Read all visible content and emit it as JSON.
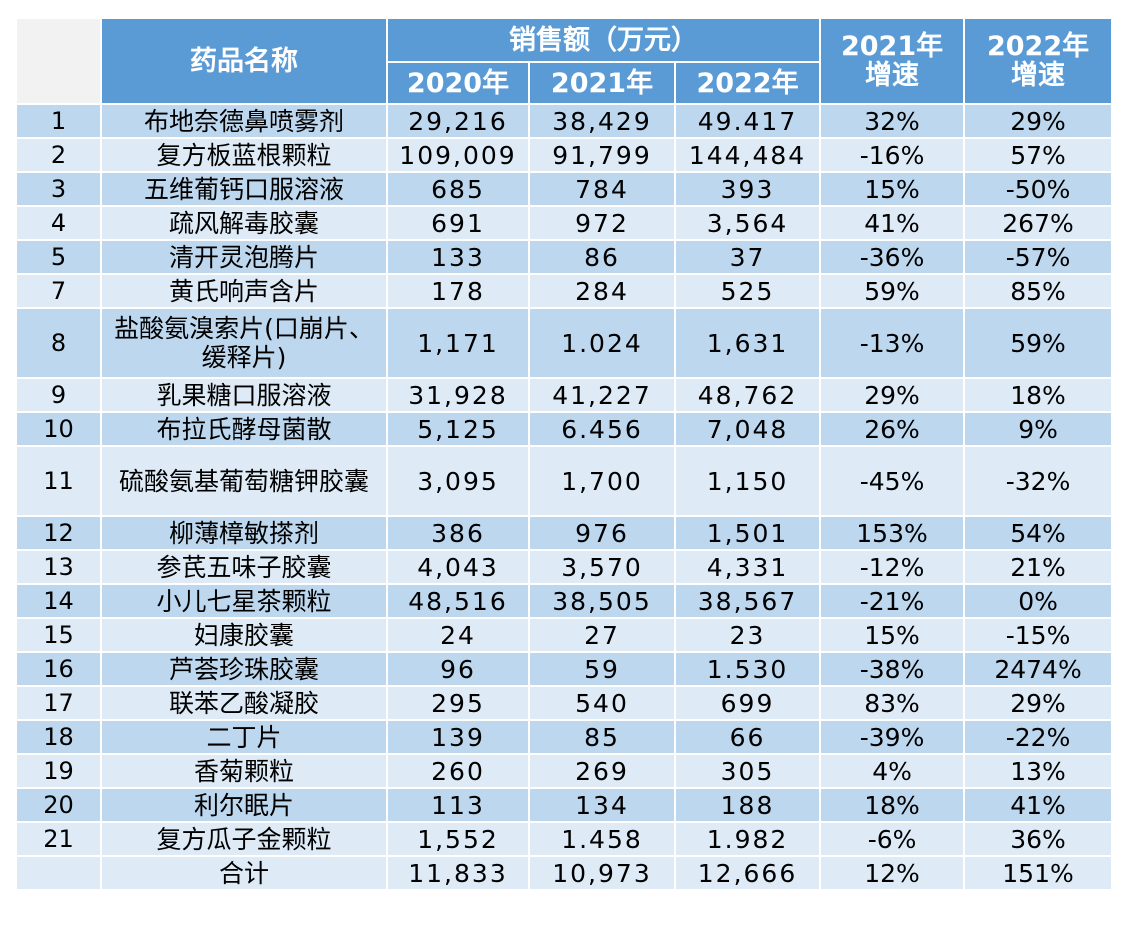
{
  "header": {
    "name_label": "药品名称",
    "sales_label": "销售额（万元）",
    "years": [
      "2020年",
      "2021年",
      "2022年"
    ],
    "growth_2021": [
      "2021年",
      "增速"
    ],
    "growth_2022": [
      "2022年",
      "增速"
    ]
  },
  "rows": [
    {
      "idx": "1",
      "name": "布地奈德鼻喷雾剂",
      "y2020": "29,216",
      "y2021": "38,429",
      "y2022": "49.417",
      "g2021": "32%",
      "g2022": "29%"
    },
    {
      "idx": "2",
      "name": "复方板蓝根颗粒",
      "y2020": "109,009",
      "y2021": "91,799",
      "y2022": "144,484",
      "g2021": "-16%",
      "g2022": "57%"
    },
    {
      "idx": "3",
      "name": "五维葡钙口服溶液",
      "y2020": "685",
      "y2021": "784",
      "y2022": "393",
      "g2021": "15%",
      "g2022": "-50%"
    },
    {
      "idx": "4",
      "name": "疏风解毒胶囊",
      "y2020": "691",
      "y2021": "972",
      "y2022": "3,564",
      "g2021": "41%",
      "g2022": "267%"
    },
    {
      "idx": "5",
      "name": "清开灵泡腾片",
      "y2020": "133",
      "y2021": "86",
      "y2022": "37",
      "g2021": "-36%",
      "g2022": "-57%"
    },
    {
      "idx": "7",
      "name": "黄氏响声含片",
      "y2020": "178",
      "y2021": "284",
      "y2022": "525",
      "g2021": "59%",
      "g2022": "85%"
    },
    {
      "idx": "8",
      "name": "盐酸氨溴索片(口崩片、缓释片)",
      "y2020": "1,171",
      "y2021": "1.024",
      "y2022": "1,631",
      "g2021": "-13%",
      "g2022": "59%"
    },
    {
      "idx": "9",
      "name": "乳果糖口服溶液",
      "y2020": "31,928",
      "y2021": "41,227",
      "y2022": "48,762",
      "g2021": "29%",
      "g2022": "18%"
    },
    {
      "idx": "10",
      "name": "布拉氏酵母菌散",
      "y2020": "5,125",
      "y2021": "6.456",
      "y2022": "7,048",
      "g2021": "26%",
      "g2022": "9%"
    },
    {
      "idx": "11",
      "name": "硫酸氨基葡萄糖钾胶囊",
      "y2020": "3,095",
      "y2021": "1,700",
      "y2022": "1,150",
      "g2021": "-45%",
      "g2022": "-32%"
    },
    {
      "idx": "12",
      "name": "柳薄樟敏搽剂",
      "y2020": "386",
      "y2021": "976",
      "y2022": "1,501",
      "g2021": "153%",
      "g2022": "54%"
    },
    {
      "idx": "13",
      "name": "参芪五味子胶囊",
      "y2020": "4,043",
      "y2021": "3,570",
      "y2022": "4,331",
      "g2021": "-12%",
      "g2022": "21%"
    },
    {
      "idx": "14",
      "name": "小儿七星茶颗粒",
      "y2020": "48,516",
      "y2021": "38,505",
      "y2022": "38,567",
      "g2021": "-21%",
      "g2022": "0%"
    },
    {
      "idx": "15",
      "name": "妇康胶囊",
      "y2020": "24",
      "y2021": "27",
      "y2022": "23",
      "g2021": "15%",
      "g2022": "-15%"
    },
    {
      "idx": "16",
      "name": "芦荟珍珠胶囊",
      "y2020": "96",
      "y2021": "59",
      "y2022": "1.530",
      "g2021": "-38%",
      "g2022": "2474%"
    },
    {
      "idx": "17",
      "name": "联苯乙酸凝胶",
      "y2020": "295",
      "y2021": "540",
      "y2022": "699",
      "g2021": "83%",
      "g2022": "29%"
    },
    {
      "idx": "18",
      "name": "二丁片",
      "y2020": "139",
      "y2021": "85",
      "y2022": "66",
      "g2021": "-39%",
      "g2022": "-22%"
    },
    {
      "idx": "19",
      "name": "香菊颗粒",
      "y2020": "260",
      "y2021": "269",
      "y2022": "305",
      "g2021": "4%",
      "g2022": "13%"
    },
    {
      "idx": "20",
      "name": "利尔眠片",
      "y2020": "113",
      "y2021": "134",
      "y2022": "188",
      "g2021": "18%",
      "g2022": "41%"
    },
    {
      "idx": "21",
      "name": "复方瓜子金颗粒",
      "y2020": "1,552",
      "y2021": "1.458",
      "y2022": "1.982",
      "g2021": "-6%",
      "g2022": "36%"
    }
  ],
  "total": {
    "idx": "",
    "name": "合计",
    "y2020": "11,833",
    "y2021": "10,973",
    "y2022": "12,666",
    "g2021": "12%",
    "g2022": "151%"
  },
  "colors": {
    "header_bg": "#5b9bd5",
    "row_dark": "#bdd7ee",
    "row_light": "#deebf7",
    "header_text": "#ffffff"
  }
}
